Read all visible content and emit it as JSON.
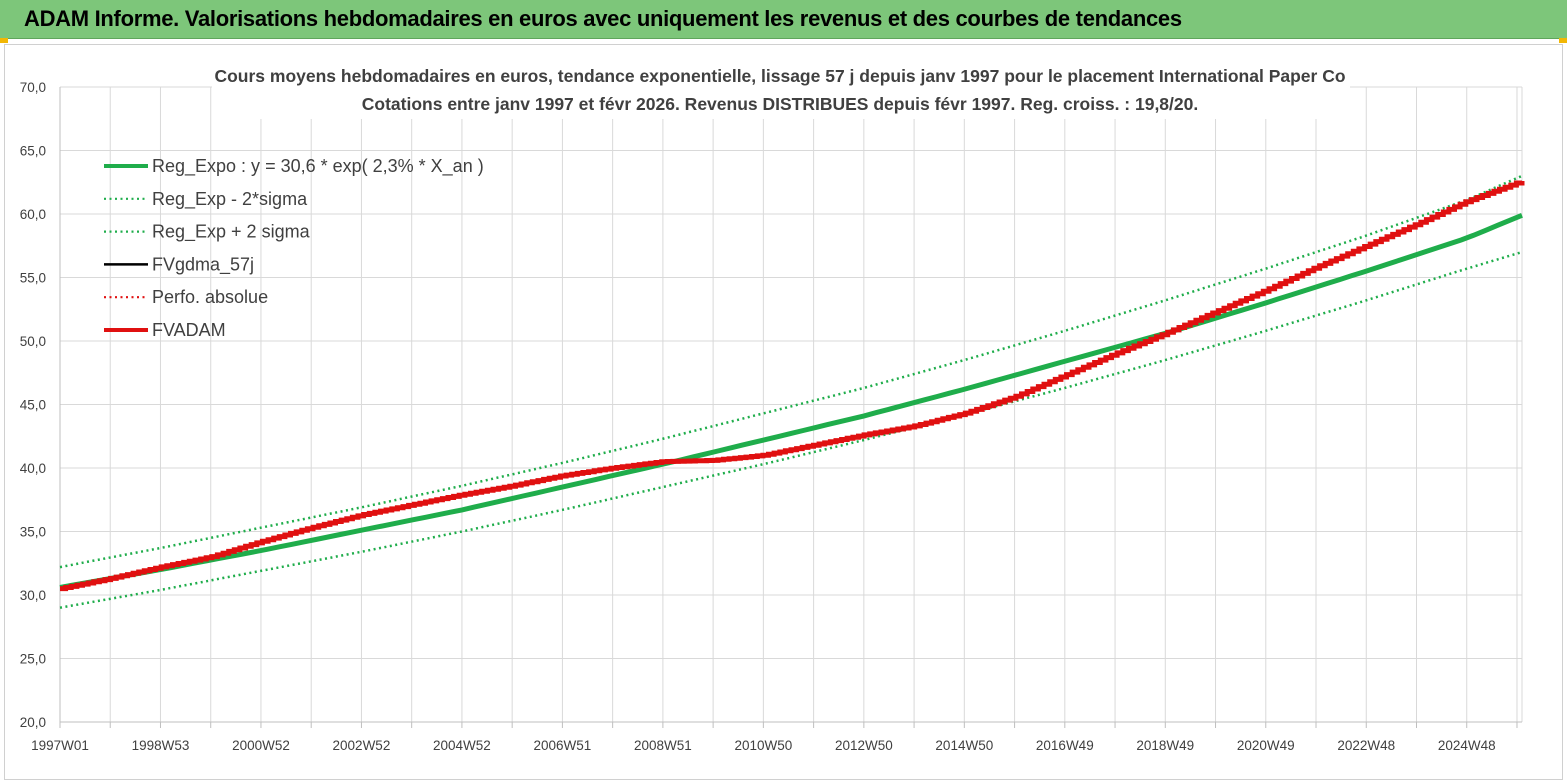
{
  "banner": {
    "title": "ADAM Informe. Valorisations hebdomadaires en euros avec uniquement les revenus et des courbes de tendances"
  },
  "colors": {
    "banner": "#7dc67a",
    "green": "#1fad4b",
    "red": "#e01010",
    "black": "#000000",
    "grid": "#d9d9d9"
  },
  "chart_data": {
    "type": "line",
    "title": "Cours moyens hebdomadaires en euros, tendance exponentielle, lissage 57 j depuis janv 1997 pour le placement International Paper Co",
    "subtitle": "Cotations entre janv 1997 et févr 2026. Revenus DISTRIBUES depuis févr 1997. Reg. croiss. : 19,8/20.",
    "xlabel": "",
    "ylabel": "",
    "ylim": [
      20,
      70
    ],
    "yticks": [
      "20,0",
      "25,0",
      "30,0",
      "35,0",
      "40,0",
      "45,0",
      "50,0",
      "55,0",
      "60,0",
      "65,0",
      "70,0"
    ],
    "xlim": [
      1997.0,
      2026.1
    ],
    "xticks": [
      {
        "label": "1997W01",
        "x": 1997.0
      },
      {
        "label": "1998W53",
        "x": 1999.0
      },
      {
        "label": "2000W52",
        "x": 2001.0
      },
      {
        "label": "2002W52",
        "x": 2003.0
      },
      {
        "label": "2004W52",
        "x": 2005.0
      },
      {
        "label": "2006W51",
        "x": 2007.0
      },
      {
        "label": "2008W51",
        "x": 2009.0
      },
      {
        "label": "2010W50",
        "x": 2011.0
      },
      {
        "label": "2012W50",
        "x": 2013.0
      },
      {
        "label": "2014W50",
        "x": 2015.0
      },
      {
        "label": "2016W49",
        "x": 2017.0
      },
      {
        "label": "2018W49",
        "x": 2019.0
      },
      {
        "label": "2020W49",
        "x": 2021.0
      },
      {
        "label": "2022W48",
        "x": 2023.0
      },
      {
        "label": "2024W48",
        "x": 2025.0
      }
    ],
    "grid": true,
    "legend_position": "top-left",
    "series": [
      {
        "name": "Reg_Expo : y = 30,6 * exp( 2,3% *  X_an )",
        "style": "solid-thick",
        "color": "#1fad4b",
        "x": [
          1997,
          1999,
          2001,
          2003,
          2005,
          2007,
          2009,
          2011,
          2013,
          2015,
          2017,
          2019,
          2021,
          2023,
          2025,
          2026.1
        ],
        "y": [
          30.6,
          32.0,
          33.5,
          35.1,
          36.7,
          38.5,
          40.3,
          42.2,
          44.1,
          46.2,
          48.4,
          50.6,
          53.0,
          55.5,
          58.1,
          59.9
        ]
      },
      {
        "name": "Reg_Exp - 2*sigma",
        "style": "dotted",
        "color": "#1fad4b",
        "x": [
          1997,
          1999,
          2001,
          2003,
          2005,
          2007,
          2009,
          2011,
          2013,
          2015,
          2017,
          2019,
          2021,
          2023,
          2025,
          2026.1
        ],
        "y": [
          29.0,
          30.4,
          31.9,
          33.4,
          35.0,
          36.7,
          38.5,
          40.3,
          42.2,
          44.2,
          46.3,
          48.5,
          50.8,
          53.2,
          55.7,
          57.0
        ]
      },
      {
        "name": "Reg_Exp + 2 sigma",
        "style": "dotted",
        "color": "#1fad4b",
        "x": [
          1997,
          1999,
          2001,
          2003,
          2005,
          2007,
          2009,
          2011,
          2013,
          2015,
          2017,
          2019,
          2021,
          2023,
          2025,
          2026.1
        ],
        "y": [
          32.2,
          33.7,
          35.3,
          36.9,
          38.6,
          40.4,
          42.3,
          44.3,
          46.3,
          48.5,
          50.8,
          53.2,
          55.7,
          58.3,
          61.1,
          63.0
        ]
      },
      {
        "name": "FVgdma_57j",
        "style": "solid",
        "color": "#000000",
        "x": [],
        "y": []
      },
      {
        "name": "Perfo. absolue",
        "style": "dotted",
        "color": "#e01010",
        "x": [],
        "y": []
      },
      {
        "name": "FVADAM",
        "style": "solid-thick",
        "color": "#e01010",
        "x": [
          1997,
          1998,
          1999,
          2000,
          2001,
          2002,
          2003,
          2004,
          2005,
          2006,
          2007,
          2008,
          2009,
          2010,
          2011,
          2012,
          2013,
          2014,
          2015,
          2016,
          2017,
          2018,
          2019,
          2020,
          2021,
          2022,
          2023,
          2024,
          2025,
          2026.1
        ],
        "y": [
          30.5,
          31.3,
          32.2,
          33.0,
          34.2,
          35.3,
          36.3,
          37.1,
          37.9,
          38.6,
          39.4,
          40.0,
          40.5,
          40.6,
          41.0,
          41.8,
          42.6,
          43.3,
          44.3,
          45.6,
          47.3,
          49.0,
          50.6,
          52.3,
          54.0,
          55.8,
          57.5,
          59.2,
          61.0,
          62.6
        ]
      }
    ]
  }
}
